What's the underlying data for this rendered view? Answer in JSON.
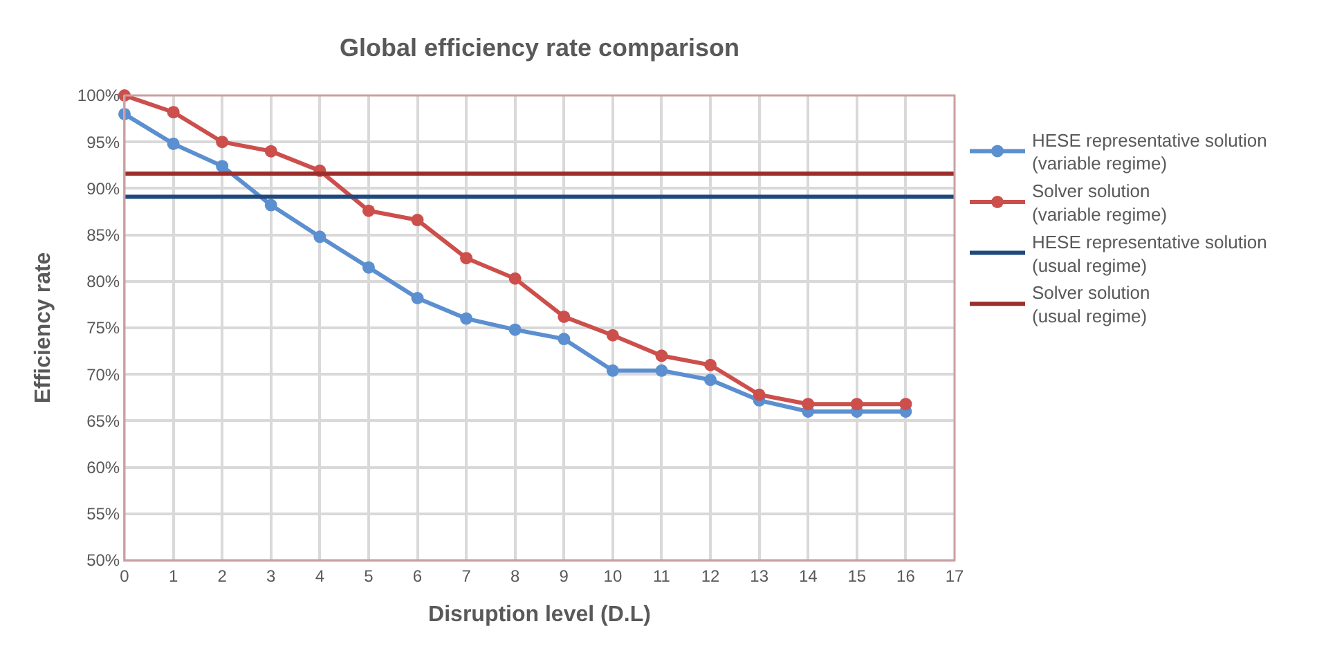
{
  "chart_data": {
    "type": "line",
    "title": "Global efficiency rate comparison",
    "xlabel": "Disruption level (D.L)",
    "ylabel": "Efficiency rate",
    "x": [
      0,
      1,
      2,
      3,
      4,
      5,
      6,
      7,
      8,
      9,
      10,
      11,
      12,
      13,
      14,
      15,
      16
    ],
    "series": [
      {
        "name": "HESE representative solution\n(variable regime)",
        "color": "#5b8fd0",
        "marker": "circle",
        "values": [
          98,
          94.8,
          92.4,
          88.2,
          84.8,
          81.5,
          78.2,
          76,
          74.8,
          73.8,
          70.4,
          70.4,
          69.4,
          67.2,
          66,
          66,
          66
        ]
      },
      {
        "name": "Solver solution\n(variable regime)",
        "color": "#cc4f4c",
        "marker": "circle",
        "values": [
          100,
          98.2,
          95,
          94,
          91.9,
          87.6,
          86.6,
          82.5,
          80.3,
          76.2,
          74.2,
          72,
          71,
          67.8,
          66.8,
          66.8,
          66.8
        ]
      }
    ],
    "ref_lines": [
      {
        "axis": "y",
        "value": 89.1,
        "label": "HESE representative solution\n(usual regime)",
        "color": "#1f497d",
        "line_style": "solid"
      },
      {
        "axis": "y",
        "value": 91.6,
        "label": "Solver solution\n(usual regime)",
        "color": "#9b2d2a",
        "line_style": "solid"
      }
    ],
    "xlim": [
      0,
      17
    ],
    "xticks": [
      0,
      1,
      2,
      3,
      4,
      5,
      6,
      7,
      8,
      9,
      10,
      11,
      12,
      13,
      14,
      15,
      16,
      17
    ],
    "ylim": [
      50,
      100
    ],
    "yticks": [
      {
        "value": 50,
        "label": "50%"
      },
      {
        "value": 55,
        "label": "55%"
      },
      {
        "value": 60,
        "label": "60%"
      },
      {
        "value": 65,
        "label": "65%"
      },
      {
        "value": 70,
        "label": "70%"
      },
      {
        "value": 75,
        "label": "75%"
      },
      {
        "value": 80,
        "label": "80%"
      },
      {
        "value": 85,
        "label": "85%"
      },
      {
        "value": 90,
        "label": "90%"
      },
      {
        "value": 95,
        "label": "95%"
      },
      {
        "value": 100,
        "label": "100%"
      }
    ],
    "grid": true,
    "legend": "right"
  }
}
